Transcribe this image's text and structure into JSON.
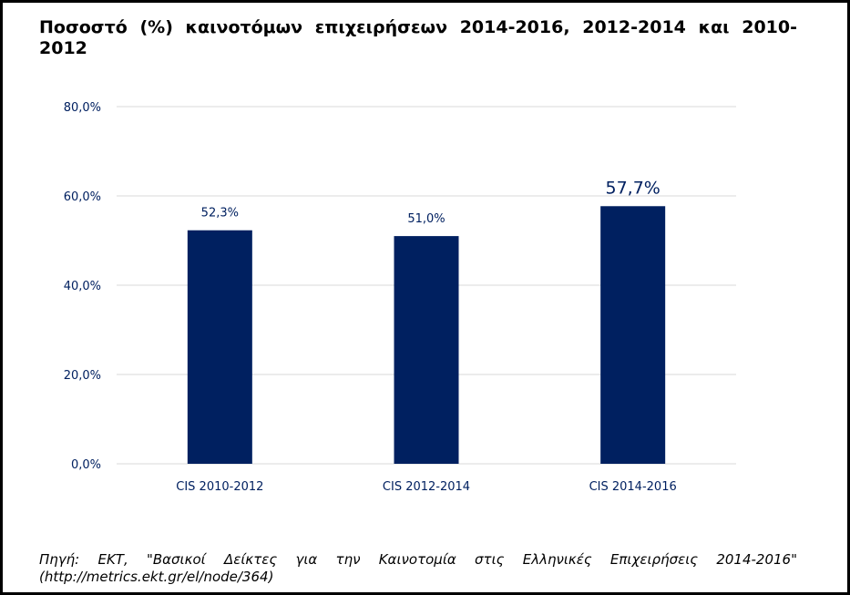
{
  "title": "Ποσοστό (%) καινοτόμων επιχειρήσεων 2014-2016, 2012-2014 και 2010-2012",
  "source": "Πηγή: ΕΚΤ, \"Βασικοί Δείκτες για την Καινοτομία στις Ελληνικές Επιχειρήσεις 2014-2016\" (http://metrics.ekt.gr/el/node/364)",
  "colors": {
    "bar": "#002060",
    "grid": "#d9d9d9",
    "axis_text": "#002060",
    "border": "#000000"
  },
  "chart_data": {
    "type": "bar",
    "title": "Ποσοστό (%) καινοτόμων επιχειρήσεων 2014-2016, 2012-2014 και 2010-2012",
    "xlabel": "",
    "ylabel": "",
    "categories": [
      "CIS 2010-2012",
      "CIS 2012-2014",
      "CIS 2014-2016"
    ],
    "values": [
      52.3,
      51.0,
      57.7
    ],
    "value_labels": [
      "52,3%",
      "51,0%",
      "57,7%"
    ],
    "highlighted_label_index": 2,
    "ylim": [
      0,
      80
    ],
    "yticks": [
      0,
      20,
      40,
      60,
      80
    ],
    "ytick_labels": [
      "0,0%",
      "20,0%",
      "40,0%",
      "60,0%",
      "80,0%"
    ],
    "grid": true,
    "legend": "none"
  }
}
